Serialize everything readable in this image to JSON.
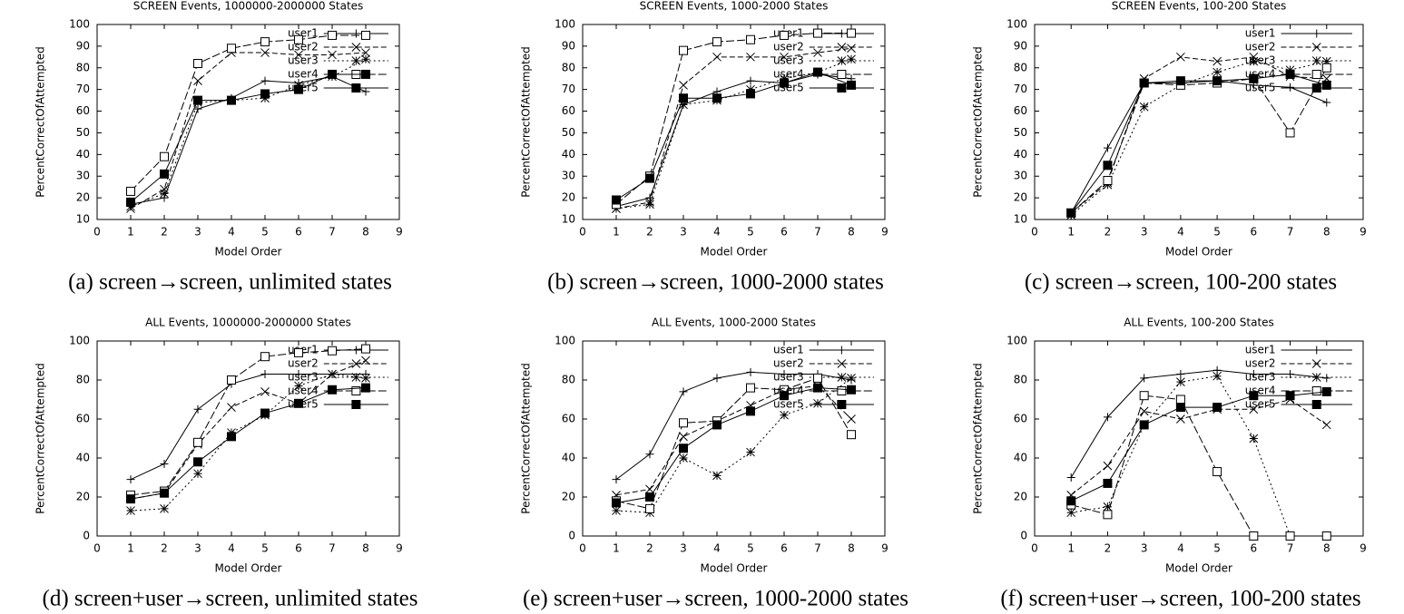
{
  "chart_data": [
    {
      "type": "line",
      "title": "SCREEN Events, 1000000-2000000 States",
      "xlabel": "Model Order",
      "ylabel": "PercentCorrectOfAttempted",
      "caption": "(a) screen→screen, unlimited states",
      "xlim": [
        0,
        9
      ],
      "xticks": [
        0,
        1,
        2,
        3,
        4,
        5,
        6,
        7,
        8,
        9
      ],
      "ylim": [
        10,
        100
      ],
      "yticks": [
        10,
        20,
        30,
        40,
        50,
        60,
        70,
        80,
        90,
        100
      ],
      "x": [
        1,
        2,
        3,
        4,
        5,
        6,
        7,
        8
      ],
      "legend": "top-right",
      "series": [
        {
          "name": "user1",
          "color": "#000000",
          "marker": "plus",
          "dash": "none",
          "values": [
            17,
            20,
            61,
            66,
            74,
            73,
            76,
            69
          ]
        },
        {
          "name": "user2",
          "color": "#000000",
          "marker": "cross",
          "dash": "6,3",
          "values": [
            15,
            24,
            74,
            87,
            87,
            86,
            86,
            87
          ]
        },
        {
          "name": "user3",
          "color": "#000000",
          "marker": "star",
          "dash": "2,3",
          "values": [
            16,
            22,
            64,
            65,
            66,
            72,
            76,
            84
          ]
        },
        {
          "name": "user4",
          "color": "#000000",
          "marker": "square",
          "dash": "9,3",
          "values": [
            23,
            39,
            82,
            89,
            92,
            93,
            95,
            95
          ]
        },
        {
          "name": "user5",
          "color": "#000000",
          "marker": "filled-square",
          "dash": "none",
          "values": [
            18,
            31,
            65,
            65,
            68,
            70,
            77,
            77
          ]
        }
      ]
    },
    {
      "type": "line",
      "title": "SCREEN Events, 1000-2000 States",
      "xlabel": "Model Order",
      "ylabel": "PercentCorrectOfAttempted",
      "caption": "(b) screen→screen, 1000-2000 states",
      "xlim": [
        0,
        9
      ],
      "xticks": [
        0,
        1,
        2,
        3,
        4,
        5,
        6,
        7,
        8,
        9
      ],
      "ylim": [
        10,
        100
      ],
      "yticks": [
        10,
        20,
        30,
        40,
        50,
        60,
        70,
        80,
        90,
        100
      ],
      "x": [
        1,
        2,
        3,
        4,
        5,
        6,
        7,
        8
      ],
      "legend": "top-right",
      "series": [
        {
          "name": "user1",
          "color": "#000000",
          "marker": "plus",
          "dash": "none",
          "values": [
            16,
            20,
            63,
            69,
            74,
            73,
            77,
            75
          ]
        },
        {
          "name": "user2",
          "color": "#000000",
          "marker": "cross",
          "dash": "6,3",
          "values": [
            15,
            18,
            72,
            85,
            85,
            85,
            87,
            89
          ]
        },
        {
          "name": "user3",
          "color": "#000000",
          "marker": "star",
          "dash": "2,3",
          "values": [
            15,
            17,
            63,
            65,
            70,
            75,
            78,
            84
          ]
        },
        {
          "name": "user4",
          "color": "#000000",
          "marker": "square",
          "dash": "9,3",
          "values": [
            17,
            30,
            88,
            92,
            93,
            95,
            96,
            96
          ]
        },
        {
          "name": "user5",
          "color": "#000000",
          "marker": "filled-square",
          "dash": "none",
          "values": [
            19,
            29,
            66,
            66,
            68,
            73,
            78,
            72
          ]
        }
      ]
    },
    {
      "type": "line",
      "title": "SCREEN Events, 100-200 States",
      "xlabel": "Model Order",
      "ylabel": "PercentCorrectOfAttempted",
      "caption": "(c) screen→screen, 100-200 states",
      "xlim": [
        0,
        9
      ],
      "xticks": [
        0,
        1,
        2,
        3,
        4,
        5,
        6,
        7,
        8,
        9
      ],
      "ylim": [
        10,
        100
      ],
      "yticks": [
        10,
        20,
        30,
        40,
        50,
        60,
        70,
        80,
        90,
        100
      ],
      "x": [
        1,
        2,
        3,
        4,
        5,
        6,
        7,
        8
      ],
      "legend": "top-right",
      "series": [
        {
          "name": "user1",
          "color": "#000000",
          "marker": "plus",
          "dash": "none",
          "values": [
            13,
            43,
            73,
            73,
            74,
            72,
            71,
            64
          ]
        },
        {
          "name": "user2",
          "color": "#000000",
          "marker": "cross",
          "dash": "6,3",
          "values": [
            13,
            27,
            75,
            85,
            83,
            85,
            76,
            75
          ]
        },
        {
          "name": "user3",
          "color": "#000000",
          "marker": "star",
          "dash": "2,3",
          "values": [
            12,
            26,
            62,
            72,
            78,
            83,
            79,
            83
          ]
        },
        {
          "name": "user4",
          "color": "#000000",
          "marker": "square",
          "dash": "9,3",
          "values": [
            13,
            28,
            73,
            72,
            73,
            75,
            50,
            80
          ]
        },
        {
          "name": "user5",
          "color": "#000000",
          "marker": "filled-square",
          "dash": "none",
          "values": [
            13,
            35,
            73,
            74,
            74,
            75,
            77,
            72
          ]
        }
      ]
    },
    {
      "type": "line",
      "title": "ALL Events, 1000000-2000000 States",
      "xlabel": "Model Order",
      "ylabel": "PercentCorrectOfAttempted",
      "caption": "(d) screen+user→screen, unlimited states",
      "xlim": [
        0,
        9
      ],
      "xticks": [
        0,
        1,
        2,
        3,
        4,
        5,
        6,
        7,
        8,
        9
      ],
      "ylim": [
        0,
        100
      ],
      "yticks": [
        0,
        20,
        40,
        60,
        80,
        100
      ],
      "x": [
        1,
        2,
        3,
        4,
        5,
        6,
        7,
        8
      ],
      "legend": "top-right",
      "series": [
        {
          "name": "user1",
          "color": "#000000",
          "marker": "plus",
          "dash": "none",
          "values": [
            29,
            37,
            65,
            78,
            83,
            83,
            83,
            83
          ]
        },
        {
          "name": "user2",
          "color": "#000000",
          "marker": "cross",
          "dash": "6,3",
          "values": [
            19,
            22,
            47,
            66,
            74,
            68,
            83,
            90
          ]
        },
        {
          "name": "user3",
          "color": "#000000",
          "marker": "star",
          "dash": "2,3",
          "values": [
            13,
            14,
            32,
            53,
            62,
            77,
            83,
            81
          ]
        },
        {
          "name": "user4",
          "color": "#000000",
          "marker": "square",
          "dash": "9,3",
          "values": [
            21,
            23,
            48,
            80,
            92,
            94,
            95,
            96
          ]
        },
        {
          "name": "user5",
          "color": "#000000",
          "marker": "filled-square",
          "dash": "none",
          "values": [
            19,
            22,
            38,
            51,
            63,
            68,
            75,
            76
          ]
        }
      ]
    },
    {
      "type": "line",
      "title": "ALL Events, 1000-2000 States",
      "xlabel": "Model Order",
      "ylabel": "PercentCorrectOfAttempted",
      "caption": "(e) screen+user→screen, 1000-2000 states",
      "xlim": [
        0,
        9
      ],
      "xticks": [
        0,
        1,
        2,
        3,
        4,
        5,
        6,
        7,
        8,
        9
      ],
      "ylim": [
        0,
        100
      ],
      "yticks": [
        0,
        20,
        40,
        60,
        80,
        100
      ],
      "x": [
        1,
        2,
        3,
        4,
        5,
        6,
        7,
        8
      ],
      "legend": "top-right",
      "series": [
        {
          "name": "user1",
          "color": "#000000",
          "marker": "plus",
          "dash": "none",
          "values": [
            29,
            42,
            74,
            81,
            84,
            83,
            83,
            80
          ]
        },
        {
          "name": "user2",
          "color": "#000000",
          "marker": "cross",
          "dash": "6,3",
          "values": [
            21,
            24,
            51,
            59,
            67,
            75,
            77,
            60
          ]
        },
        {
          "name": "user3",
          "color": "#000000",
          "marker": "star",
          "dash": "2,3",
          "values": [
            13,
            12,
            40,
            31,
            43,
            62,
            68,
            81
          ]
        },
        {
          "name": "user4",
          "color": "#000000",
          "marker": "square",
          "dash": "9,3",
          "values": [
            18,
            14,
            58,
            59,
            76,
            75,
            81,
            52
          ]
        },
        {
          "name": "user5",
          "color": "#000000",
          "marker": "filled-square",
          "dash": "none",
          "values": [
            17,
            20,
            45,
            57,
            64,
            72,
            76,
            75
          ]
        }
      ]
    },
    {
      "type": "line",
      "title": "ALL Events, 100-200 States",
      "xlabel": "Model Order",
      "ylabel": "PercentCorrectOfAttempted",
      "caption": "(f) screen+user→screen, 100-200 states",
      "xlim": [
        0,
        9
      ],
      "xticks": [
        0,
        1,
        2,
        3,
        4,
        5,
        6,
        7,
        8,
        9
      ],
      "ylim": [
        0,
        100
      ],
      "yticks": [
        0,
        20,
        40,
        60,
        80,
        100
      ],
      "x": [
        1,
        2,
        3,
        4,
        5,
        6,
        7,
        8
      ],
      "legend": "top-right",
      "series": [
        {
          "name": "user1",
          "color": "#000000",
          "marker": "plus",
          "dash": "none",
          "values": [
            30,
            61,
            81,
            83,
            85,
            83,
            83,
            81
          ]
        },
        {
          "name": "user2",
          "color": "#000000",
          "marker": "cross",
          "dash": "6,3",
          "values": [
            21,
            36,
            64,
            60,
            65,
            65,
            70,
            57
          ]
        },
        {
          "name": "user3",
          "color": "#000000",
          "marker": "star",
          "dash": "2,3",
          "values": [
            12,
            15,
            57,
            79,
            82,
            50,
            0,
            0
          ]
        },
        {
          "name": "user4",
          "color": "#000000",
          "marker": "square",
          "dash": "9,3",
          "values": [
            16,
            11,
            72,
            70,
            33,
            0,
            0,
            0
          ]
        },
        {
          "name": "user5",
          "color": "#000000",
          "marker": "filled-square",
          "dash": "none",
          "values": [
            18,
            27,
            57,
            66,
            66,
            72,
            72,
            74
          ]
        }
      ]
    }
  ]
}
